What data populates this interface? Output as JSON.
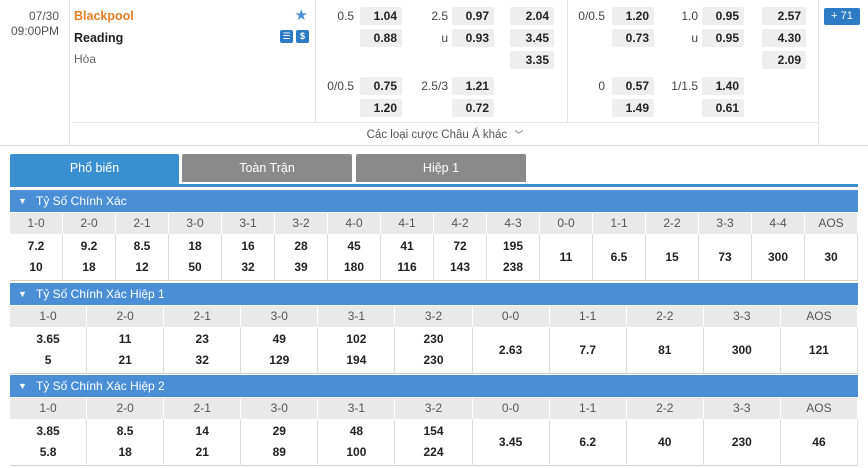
{
  "match": {
    "date": "07/30",
    "time": "09:00PM",
    "home_team": "Blackpool",
    "away_team": "Reading",
    "draw_label": "Hòa",
    "more_bets_label": "Các loại cược Châu Á khác",
    "bets_count": "71",
    "icons": {
      "favorite": "star-icon",
      "stream": "stream-icon",
      "money": "dollar-icon"
    }
  },
  "odds": {
    "ft_handicap_main": {
      "line": "0.5",
      "home": "1.04",
      "away": "0.88"
    },
    "ft_over_under_main": {
      "line": "2.5",
      "over": "0.97",
      "under_label": "u",
      "under": "0.93"
    },
    "ft_1x2": {
      "home": "2.04",
      "away": "3.45",
      "draw": "3.35"
    },
    "ft_handicap_alt": {
      "line": "0/0.5",
      "home": "0.75",
      "away": "1.20"
    },
    "ft_over_under_alt": {
      "line": "2.5/3",
      "over": "1.21",
      "under": "0.72"
    },
    "h1_handicap_main": {
      "line": "0/0.5",
      "home": "1.20",
      "away": "0.73"
    },
    "h1_over_under_main": {
      "line": "1.0",
      "over": "0.95",
      "under_label": "u",
      "under": "0.95"
    },
    "h1_1x2": {
      "home": "2.57",
      "away": "4.30",
      "draw": "2.09"
    },
    "h1_handicap_alt": {
      "line": "0",
      "home": "0.57",
      "away": "1.49"
    },
    "h1_over_under_alt": {
      "line": "1/1.5",
      "over": "1.40",
      "under": "0.61"
    }
  },
  "tabs": [
    {
      "label": "Phổ biến",
      "active": true
    },
    {
      "label": "Toàn Trận",
      "active": false
    },
    {
      "label": "Hiệp 1",
      "active": false
    }
  ],
  "sections": [
    {
      "title": "Tỷ Số Chính Xác",
      "paired": [
        {
          "score": "1-0",
          "home": "7.2",
          "away": "10"
        },
        {
          "score": "2-0",
          "home": "9.2",
          "away": "18"
        },
        {
          "score": "2-1",
          "home": "8.5",
          "away": "12"
        },
        {
          "score": "3-0",
          "home": "18",
          "away": "50"
        },
        {
          "score": "3-1",
          "home": "16",
          "away": "32"
        },
        {
          "score": "3-2",
          "home": "28",
          "away": "39"
        },
        {
          "score": "4-0",
          "home": "45",
          "away": "180"
        },
        {
          "score": "4-1",
          "home": "41",
          "away": "116"
        },
        {
          "score": "4-2",
          "home": "72",
          "away": "143"
        },
        {
          "score": "4-3",
          "home": "195",
          "away": "238"
        }
      ],
      "single": [
        {
          "score": "0-0",
          "value": "11"
        },
        {
          "score": "1-1",
          "value": "6.5"
        },
        {
          "score": "2-2",
          "value": "15"
        },
        {
          "score": "3-3",
          "value": "73"
        },
        {
          "score": "4-4",
          "value": "300"
        },
        {
          "score": "AOS",
          "value": "30"
        }
      ]
    },
    {
      "title": "Tỷ Số Chính Xác Hiệp 1",
      "paired": [
        {
          "score": "1-0",
          "home": "3.65",
          "away": "5"
        },
        {
          "score": "2-0",
          "home": "11",
          "away": "21"
        },
        {
          "score": "2-1",
          "home": "23",
          "away": "32"
        },
        {
          "score": "3-0",
          "home": "49",
          "away": "129"
        },
        {
          "score": "3-1",
          "home": "102",
          "away": "194"
        },
        {
          "score": "3-2",
          "home": "230",
          "away": "230"
        }
      ],
      "single": [
        {
          "score": "0-0",
          "value": "2.63"
        },
        {
          "score": "1-1",
          "value": "7.7"
        },
        {
          "score": "2-2",
          "value": "81"
        },
        {
          "score": "3-3",
          "value": "300"
        },
        {
          "score": "AOS",
          "value": "121"
        }
      ]
    },
    {
      "title": "Tỷ Số Chính Xác Hiệp 2",
      "paired": [
        {
          "score": "1-0",
          "home": "3.85",
          "away": "5.8"
        },
        {
          "score": "2-0",
          "home": "8.5",
          "away": "18"
        },
        {
          "score": "2-1",
          "home": "14",
          "away": "21"
        },
        {
          "score": "3-0",
          "home": "29",
          "away": "89"
        },
        {
          "score": "3-1",
          "home": "48",
          "away": "100"
        },
        {
          "score": "3-2",
          "home": "154",
          "away": "224"
        }
      ],
      "single": [
        {
          "score": "0-0",
          "value": "3.45"
        },
        {
          "score": "1-1",
          "value": "6.2"
        },
        {
          "score": "2-2",
          "value": "40"
        },
        {
          "score": "3-3",
          "value": "230"
        },
        {
          "score": "AOS",
          "value": "46"
        }
      ]
    }
  ],
  "colors": {
    "accent": "#3a8fd1",
    "section_header": "#4a8fd6",
    "home_team": "#e67e22"
  }
}
